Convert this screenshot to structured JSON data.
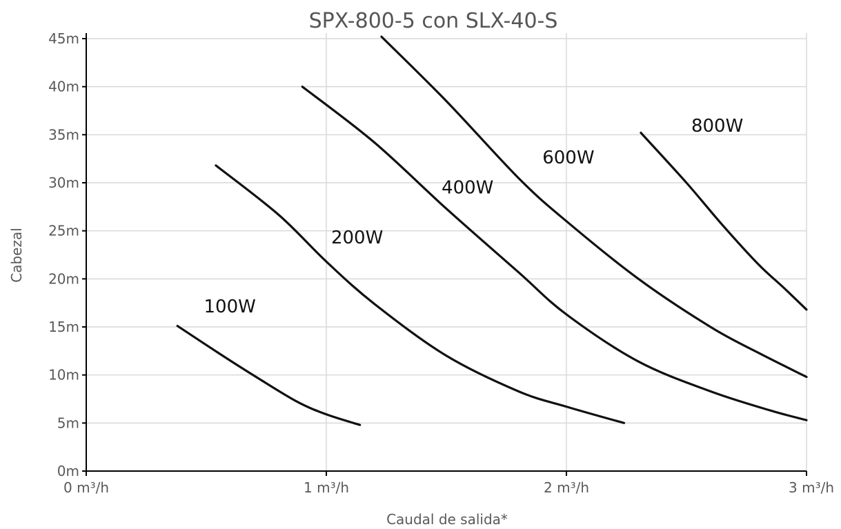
{
  "chart_data": {
    "type": "line",
    "title": "SPX-800-5 con SLX-40-S",
    "xlabel": "Caudal de salida*",
    "ylabel": "Cabezal",
    "xlim": [
      0,
      3
    ],
    "ylim": [
      0,
      45
    ],
    "x_ticks": [
      {
        "value": 0,
        "label": "0 m³/h"
      },
      {
        "value": 1,
        "label": "1 m³/h"
      },
      {
        "value": 2,
        "label": "2 m³/h"
      },
      {
        "value": 3,
        "label": "3 m³/h"
      }
    ],
    "y_ticks": [
      {
        "value": 0,
        "label": "0m"
      },
      {
        "value": 5,
        "label": "5m"
      },
      {
        "value": 10,
        "label": "10m"
      },
      {
        "value": 15,
        "label": "15m"
      },
      {
        "value": 20,
        "label": "20m"
      },
      {
        "value": 25,
        "label": "25m"
      },
      {
        "value": 30,
        "label": "30m"
      },
      {
        "value": 35,
        "label": "35m"
      },
      {
        "value": 40,
        "label": "40m"
      },
      {
        "value": 45,
        "label": "45m"
      }
    ],
    "grid": true,
    "legend": "none",
    "series": [
      {
        "name": "100W",
        "label_at": [
          0.49,
          16.5
        ],
        "points": [
          [
            0.38,
            15.1
          ],
          [
            0.55,
            12.3
          ],
          [
            0.72,
            9.6
          ],
          [
            0.88,
            7.2
          ],
          [
            1.0,
            5.9
          ],
          [
            1.14,
            4.8
          ]
        ]
      },
      {
        "name": "200W",
        "label_at": [
          1.02,
          23.7
        ],
        "points": [
          [
            0.54,
            31.8
          ],
          [
            0.8,
            26.7
          ],
          [
            1.0,
            21.8
          ],
          [
            1.2,
            17.4
          ],
          [
            1.5,
            12.0
          ],
          [
            1.8,
            8.3
          ],
          [
            2.0,
            6.7
          ],
          [
            2.24,
            5.0
          ]
        ]
      },
      {
        "name": "400W",
        "label_at": [
          1.48,
          28.9
        ],
        "points": [
          [
            0.9,
            40.0
          ],
          [
            1.2,
            34.2
          ],
          [
            1.5,
            27.3
          ],
          [
            1.8,
            20.7
          ],
          [
            2.0,
            16.3
          ],
          [
            2.3,
            11.4
          ],
          [
            2.6,
            8.3
          ],
          [
            2.85,
            6.3
          ],
          [
            3.0,
            5.3
          ]
        ]
      },
      {
        "name": "600W",
        "label_at": [
          1.9,
          32.0
        ],
        "points": [
          [
            1.23,
            45.2
          ],
          [
            1.5,
            38.5
          ],
          [
            1.8,
            30.5
          ],
          [
            2.0,
            26.0
          ],
          [
            2.3,
            20.0
          ],
          [
            2.6,
            15.0
          ],
          [
            2.8,
            12.3
          ],
          [
            3.0,
            9.8
          ]
        ]
      },
      {
        "name": "800W",
        "label_at": [
          2.52,
          35.3
        ],
        "points": [
          [
            2.31,
            35.2
          ],
          [
            2.5,
            30.0
          ],
          [
            2.65,
            25.6
          ],
          [
            2.8,
            21.5
          ],
          [
            2.9,
            19.2
          ],
          [
            3.0,
            16.8
          ]
        ]
      }
    ]
  }
}
